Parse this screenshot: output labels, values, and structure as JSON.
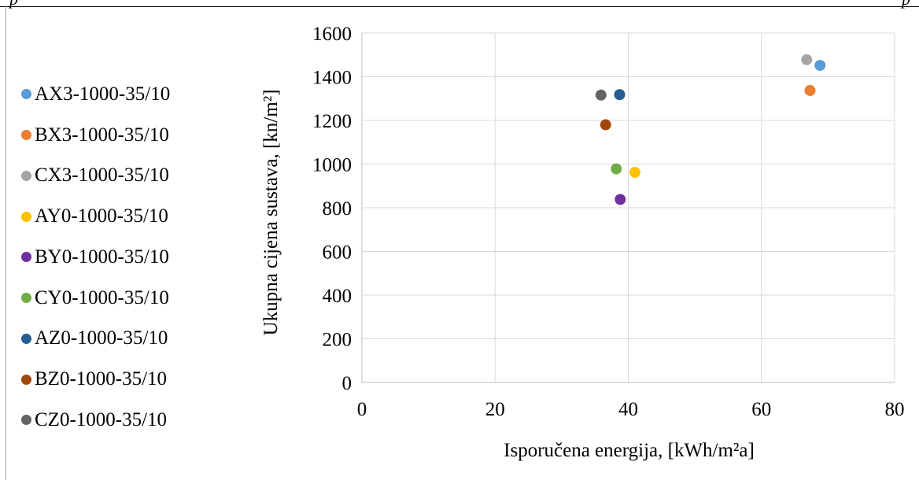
{
  "header": {
    "left_fragment": "p",
    "right_fragment": "p"
  },
  "chart_data": {
    "type": "scatter",
    "title": "",
    "xlabel": "Isporučena energija, [kWh/m²a]",
    "ylabel": "Ukupna cijena sustava, [kn/m²]",
    "xlim": [
      0,
      80
    ],
    "ylim": [
      0,
      1600
    ],
    "xticks": [
      "0",
      "20",
      "40",
      "60",
      "80"
    ],
    "yticks": [
      "0",
      "200",
      "400",
      "600",
      "800",
      "1000",
      "1200",
      "1400",
      "1600"
    ],
    "grid": true,
    "legend_position": "left",
    "series": [
      {
        "name": "AX3-1000-35/10",
        "color": "#5B9BD5",
        "x": [
          68.8
        ],
        "y": [
          1452
        ]
      },
      {
        "name": "BX3-1000-35/10",
        "color": "#ED7D31",
        "x": [
          67.3
        ],
        "y": [
          1337
        ]
      },
      {
        "name": "CX3-1000-35/10",
        "color": "#A5A5A5",
        "x": [
          66.8
        ],
        "y": [
          1478
        ]
      },
      {
        "name": "AY0-1000-35/10",
        "color": "#FFC000",
        "x": [
          41.0
        ],
        "y": [
          962
        ]
      },
      {
        "name": "BY0-1000-35/10",
        "color": "#7030A0",
        "x": [
          38.8
        ],
        "y": [
          838
        ]
      },
      {
        "name": "CY0-1000-35/10",
        "color": "#70AD47",
        "x": [
          38.2
        ],
        "y": [
          978
        ]
      },
      {
        "name": "AZ0-1000-35/10",
        "color": "#255E91",
        "x": [
          38.7
        ],
        "y": [
          1318
        ]
      },
      {
        "name": "BZ0-1000-35/10",
        "color": "#9E480E",
        "x": [
          36.6
        ],
        "y": [
          1180
        ]
      },
      {
        "name": "CZ0-1000-35/10",
        "color": "#636363",
        "x": [
          35.9
        ],
        "y": [
          1316
        ]
      }
    ]
  }
}
